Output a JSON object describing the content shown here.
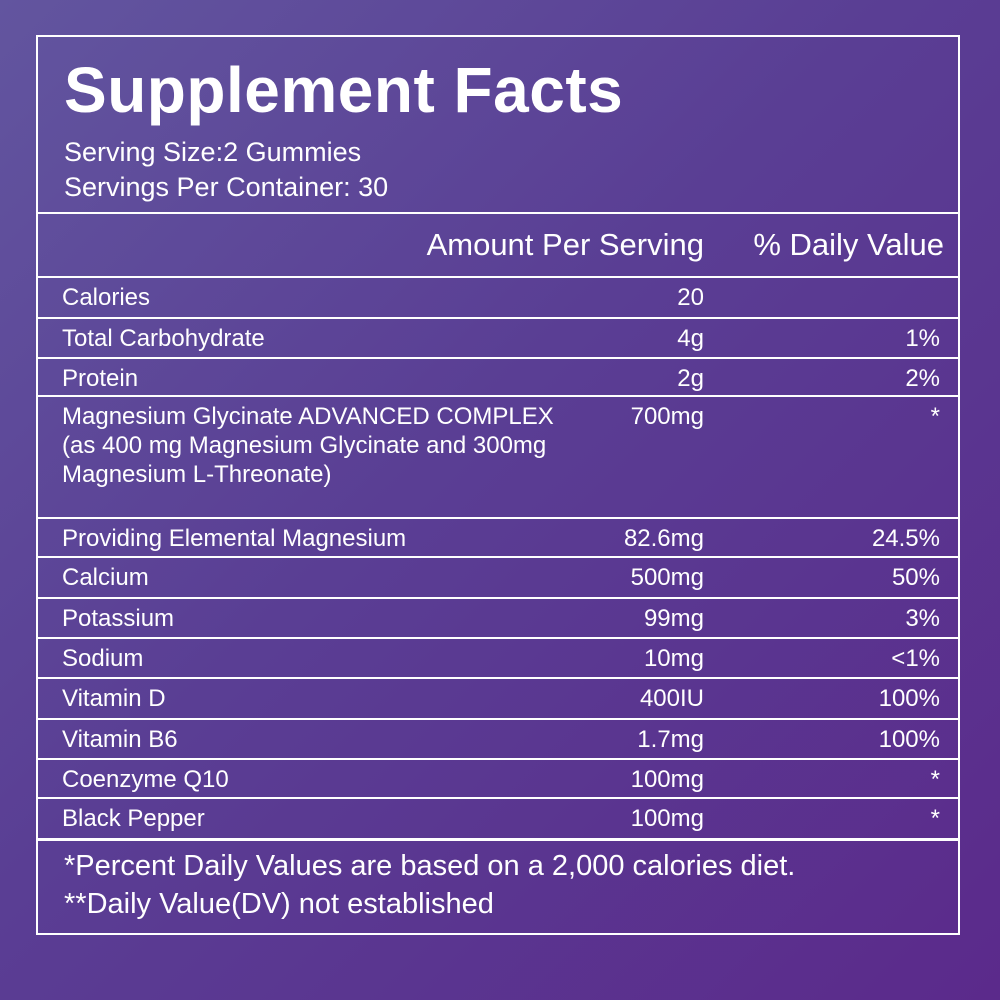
{
  "header": {
    "title": "Supplement Facts",
    "serving_size": "Serving Size:2 Gummies",
    "servings_per_container": "Servings Per Container: 30"
  },
  "table": {
    "columns": [
      "Amount Per Serving",
      "% Daily Value"
    ],
    "rows": [
      {
        "name": "Calories",
        "amount": "20"
      },
      {
        "name": "Total Carbohydrate",
        "amount": "4g",
        "dv": "1%"
      },
      {
        "name": "Protein",
        "amount": "2g",
        "dv": "2%"
      },
      {
        "name": "Magnesium Glycinate ADVANCED COMPLEX\n(as 400 mg Magnesium Glycinate and 300mg\nMagnesium L-Threonate)",
        "amount": "700mg",
        "dv": "*"
      },
      {
        "name": "Providing Elemental Magnesium",
        "amount": "82.6mg",
        "dv": "24.5%"
      },
      {
        "name": "Calcium",
        "amount": "500mg",
        "dv": "50%"
      },
      {
        "name": "Potassium",
        "amount": "99mg",
        "dv": "3%"
      },
      {
        "name": "Sodium",
        "amount": "10mg",
        "dv": "<1%"
      },
      {
        "name": "Vitamin D",
        "amount": "400IU",
        "dv": "100%"
      },
      {
        "name": "Vitamin B6",
        "amount": "1.7mg",
        "dv": "100%"
      },
      {
        "name": "Coenzyme Q10",
        "amount": "100mg",
        "dv": "*"
      },
      {
        "name": "Black Pepper",
        "amount": "100mg",
        "dv": "*"
      }
    ]
  },
  "footnotes": [
    "*Percent Daily Values are based on a 2,000 calories diet.",
    "**Daily Value(DV) not established"
  ]
}
